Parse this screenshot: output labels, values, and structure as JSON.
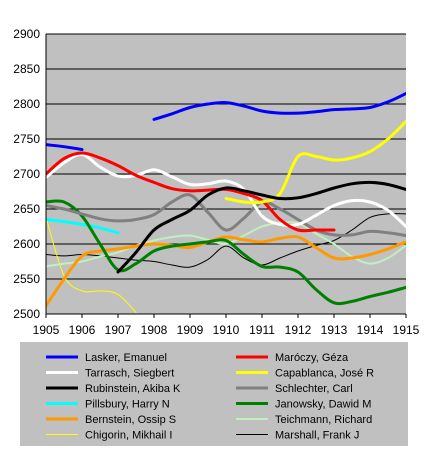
{
  "chart_data": {
    "type": "line",
    "title": "",
    "xlabel": "",
    "ylabel": "",
    "xlim": [
      1905,
      1915
    ],
    "ylim": [
      2500,
      2900
    ],
    "x_ticks": [
      "1905",
      "1906",
      "1907",
      "1908",
      "1909",
      "1910",
      "1911",
      "1912",
      "1913",
      "1914",
      "1915"
    ],
    "y_ticks": [
      "2500",
      "2550",
      "2600",
      "2650",
      "2700",
      "2750",
      "2800",
      "2850",
      "2900"
    ],
    "grid": "horizontal",
    "legend_position": "bottom",
    "colors": {
      "plot_background": "#c0c0c0",
      "grid": "#000000"
    },
    "series": [
      {
        "name": "Lasker, Emanuel",
        "color": "#0000ff",
        "width": 3,
        "points": [
          [
            1905,
            2742
          ],
          [
            1905.5,
            2739
          ],
          [
            1906,
            2735
          ],
          [
            1908,
            2778
          ],
          [
            1908.5,
            2786
          ],
          [
            1909,
            2795
          ],
          [
            1909.5,
            2800
          ],
          [
            1910,
            2802
          ],
          [
            1910.5,
            2797
          ],
          [
            1911,
            2790
          ],
          [
            1911.5,
            2787
          ],
          [
            1912,
            2787
          ],
          [
            1912.5,
            2789
          ],
          [
            1913,
            2792
          ],
          [
            1913.5,
            2793
          ],
          [
            1914,
            2795
          ],
          [
            1914.5,
            2803
          ],
          [
            1915,
            2815
          ]
        ],
        "breaks_after_x": [
          1906
        ]
      },
      {
        "name": "Maróczy, Géza",
        "color": "#ff0000",
        "width": 3,
        "points": [
          [
            1905,
            2700
          ],
          [
            1905.5,
            2722
          ],
          [
            1906,
            2730
          ],
          [
            1906.5,
            2723
          ],
          [
            1907,
            2712
          ],
          [
            1907.5,
            2698
          ],
          [
            1908,
            2688
          ],
          [
            1908.5,
            2679
          ],
          [
            1909,
            2676
          ],
          [
            1909.5,
            2677
          ],
          [
            1910,
            2678
          ],
          [
            1910.5,
            2672
          ],
          [
            1911,
            2662
          ],
          [
            1911.5,
            2635
          ],
          [
            1912,
            2620
          ],
          [
            1912.5,
            2620
          ],
          [
            1913,
            2620
          ]
        ]
      },
      {
        "name": "Tarrasch, Siegbert",
        "color": "#ffffff",
        "width": 3,
        "points": [
          [
            1905,
            2695
          ],
          [
            1905.5,
            2716
          ],
          [
            1906,
            2728
          ],
          [
            1906.5,
            2710
          ],
          [
            1907,
            2697
          ],
          [
            1907.5,
            2698
          ],
          [
            1908,
            2706
          ],
          [
            1908.5,
            2696
          ],
          [
            1909,
            2685
          ],
          [
            1909.5,
            2686
          ],
          [
            1910,
            2690
          ],
          [
            1910.5,
            2678
          ],
          [
            1911,
            2640
          ],
          [
            1911.5,
            2628
          ],
          [
            1912,
            2628
          ],
          [
            1912.5,
            2641
          ],
          [
            1913,
            2655
          ],
          [
            1913.5,
            2662
          ],
          [
            1914,
            2660
          ],
          [
            1914.5,
            2648
          ],
          [
            1915,
            2625
          ]
        ]
      },
      {
        "name": "Capablanca, José R",
        "color": "#ffff00",
        "width": 3,
        "points": [
          [
            1910,
            2665
          ],
          [
            1910.5,
            2660
          ],
          [
            1911,
            2660
          ],
          [
            1911.5,
            2672
          ],
          [
            1912,
            2725
          ],
          [
            1912.5,
            2725
          ],
          [
            1913,
            2720
          ],
          [
            1913.5,
            2723
          ],
          [
            1914,
            2732
          ],
          [
            1914.5,
            2750
          ],
          [
            1915,
            2775
          ]
        ]
      },
      {
        "name": "Rubinstein, Akiba K",
        "color": "#000000",
        "width": 3,
        "points": [
          [
            1907,
            2560
          ],
          [
            1907.5,
            2588
          ],
          [
            1908,
            2620
          ],
          [
            1908.5,
            2635
          ],
          [
            1909,
            2648
          ],
          [
            1909.5,
            2670
          ],
          [
            1910,
            2680
          ],
          [
            1910.5,
            2676
          ],
          [
            1911,
            2670
          ],
          [
            1911.5,
            2665
          ],
          [
            1912,
            2666
          ],
          [
            1912.5,
            2672
          ],
          [
            1913,
            2680
          ],
          [
            1913.5,
            2686
          ],
          [
            1914,
            2688
          ],
          [
            1914.5,
            2685
          ],
          [
            1915,
            2678
          ]
        ]
      },
      {
        "name": "Schlechter, Carl",
        "color": "#808080",
        "width": 3,
        "points": [
          [
            1905,
            2655
          ],
          [
            1905.5,
            2650
          ],
          [
            1906,
            2643
          ],
          [
            1906.5,
            2636
          ],
          [
            1907,
            2633
          ],
          [
            1907.5,
            2635
          ],
          [
            1908,
            2642
          ],
          [
            1908.5,
            2660
          ],
          [
            1909,
            2670
          ],
          [
            1909.5,
            2645
          ],
          [
            1910,
            2620
          ],
          [
            1910.5,
            2637
          ],
          [
            1911,
            2660
          ],
          [
            1911.5,
            2650
          ],
          [
            1912,
            2635
          ],
          [
            1912.5,
            2620
          ],
          [
            1913,
            2613
          ],
          [
            1913.5,
            2613
          ],
          [
            1914,
            2618
          ],
          [
            1914.5,
            2616
          ],
          [
            1915,
            2612
          ]
        ]
      },
      {
        "name": "Pillsbury, Harry N",
        "color": "#00ffff",
        "width": 3,
        "points": [
          [
            1905,
            2635
          ],
          [
            1905.5,
            2632
          ],
          [
            1906,
            2628
          ],
          [
            1906.5,
            2623
          ],
          [
            1907,
            2616
          ]
        ]
      },
      {
        "name": "Janowsky, Dawid M",
        "color": "#008000",
        "width": 3,
        "points": [
          [
            1905,
            2660
          ],
          [
            1905.5,
            2660
          ],
          [
            1906,
            2640
          ],
          [
            1906.5,
            2600
          ],
          [
            1907,
            2563
          ],
          [
            1907.5,
            2572
          ],
          [
            1908,
            2590
          ],
          [
            1908.5,
            2597
          ],
          [
            1909,
            2600
          ],
          [
            1909.5,
            2603
          ],
          [
            1910,
            2605
          ],
          [
            1910.5,
            2585
          ],
          [
            1911,
            2568
          ],
          [
            1911.5,
            2567
          ],
          [
            1912,
            2560
          ],
          [
            1912.5,
            2535
          ],
          [
            1913,
            2516
          ],
          [
            1913.5,
            2518
          ],
          [
            1914,
            2525
          ],
          [
            1914.5,
            2531
          ],
          [
            1915,
            2538
          ]
        ]
      },
      {
        "name": "Bernstein, Ossip S",
        "color": "#ff9900",
        "width": 3,
        "points": [
          [
            1905,
            2512
          ],
          [
            1905.5,
            2550
          ],
          [
            1906,
            2583
          ],
          [
            1906.5,
            2590
          ],
          [
            1907,
            2593
          ],
          [
            1907.5,
            2597
          ],
          [
            1908,
            2600
          ],
          [
            1908.5,
            2598
          ],
          [
            1909,
            2595
          ],
          [
            1909.5,
            2603
          ],
          [
            1910,
            2610
          ],
          [
            1910.5,
            2606
          ],
          [
            1911,
            2603
          ],
          [
            1911.5,
            2608
          ],
          [
            1912,
            2610
          ],
          [
            1912.5,
            2595
          ],
          [
            1913,
            2580
          ],
          [
            1913.5,
            2580
          ],
          [
            1914,
            2585
          ],
          [
            1914.5,
            2593
          ],
          [
            1915,
            2603
          ]
        ]
      },
      {
        "name": "Teichmann, Richard",
        "color": "#c0f0c0",
        "width": 2,
        "points": [
          [
            1905,
            2568
          ],
          [
            1905.5,
            2572
          ],
          [
            1906,
            2575
          ],
          [
            1906.5,
            2582
          ],
          [
            1907,
            2588
          ],
          [
            1907.5,
            2598
          ],
          [
            1908,
            2605
          ],
          [
            1908.5,
            2610
          ],
          [
            1909,
            2612
          ],
          [
            1909.5,
            2606
          ],
          [
            1910,
            2600
          ],
          [
            1910.5,
            2612
          ],
          [
            1911,
            2625
          ],
          [
            1911.5,
            2630
          ],
          [
            1912,
            2630
          ],
          [
            1912.5,
            2615
          ],
          [
            1913,
            2600
          ],
          [
            1913.5,
            2582
          ],
          [
            1914,
            2572
          ],
          [
            1914.5,
            2580
          ],
          [
            1915,
            2598
          ]
        ]
      },
      {
        "name": "Chigorin, Mikhail I",
        "color": "#ffff00",
        "width": 1,
        "points": [
          [
            1905,
            2638
          ],
          [
            1905.5,
            2555
          ],
          [
            1906,
            2533
          ],
          [
            1906.5,
            2533
          ],
          [
            1907,
            2528
          ],
          [
            1907.5,
            2502
          ]
        ]
      },
      {
        "name": "Marshall, Frank J",
        "color": "#000000",
        "width": 1,
        "points": [
          [
            1905,
            2585
          ],
          [
            1905.5,
            2583
          ],
          [
            1906,
            2585
          ],
          [
            1906.5,
            2583
          ],
          [
            1907,
            2580
          ],
          [
            1907.5,
            2577
          ],
          [
            1908,
            2575
          ],
          [
            1908.5,
            2570
          ],
          [
            1909,
            2567
          ],
          [
            1909.5,
            2578
          ],
          [
            1910,
            2597
          ],
          [
            1910.5,
            2580
          ],
          [
            1911,
            2570
          ],
          [
            1911.5,
            2580
          ],
          [
            1912,
            2590
          ],
          [
            1912.5,
            2598
          ],
          [
            1913,
            2605
          ],
          [
            1913.5,
            2620
          ],
          [
            1914,
            2638
          ],
          [
            1914.5,
            2643
          ],
          [
            1915,
            2643
          ]
        ]
      }
    ],
    "draw_order": [
      "Marshall, Frank J",
      "Chigorin, Mikhail I",
      "Teichmann, Richard",
      "Pillsbury, Harry N",
      "Bernstein, Ossip S",
      "Janowsky, Dawid M",
      "Schlechter, Carl",
      "Tarrasch, Siegbert",
      "Maróczy, Géza",
      "Capablanca, José R",
      "Rubinstein, Akiba K",
      "Lasker, Emanuel"
    ]
  }
}
